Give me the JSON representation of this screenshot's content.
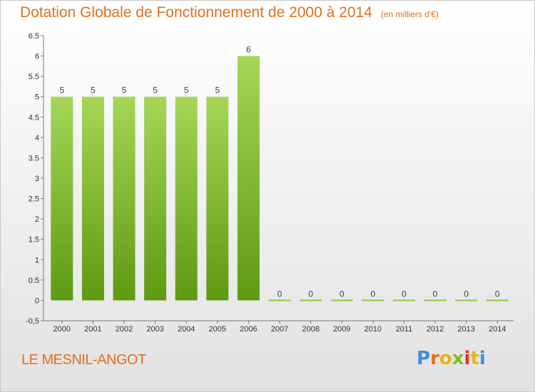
{
  "header": {
    "title": "Dotation Globale de Fonctionnement de 2000 à 2014",
    "unit": "(en milliers d'€)"
  },
  "commune": "LE MESNIL-ANGOT",
  "logo": {
    "text": "Proxiti"
  },
  "colors": {
    "title": "#e0701e",
    "bar_light": "#9fd24e",
    "bar_dark": "#5e9a12",
    "zero_bar": "#8cc63e"
  },
  "chart_data": {
    "type": "bar",
    "title": "Dotation Globale de Fonctionnement de 2000 à 2014",
    "subtitle": "(en milliers d'€)",
    "categories": [
      "2000",
      "2001",
      "2002",
      "2003",
      "2004",
      "2005",
      "2006",
      "2007",
      "2008",
      "2009",
      "2010",
      "2011",
      "2012",
      "2013",
      "2014"
    ],
    "values": [
      5,
      5,
      5,
      5,
      5,
      5,
      6,
      0,
      0,
      0,
      0,
      0,
      0,
      0,
      0
    ],
    "ylim": [
      -0.5,
      6.5
    ],
    "yticks": [
      "-0,5",
      "0",
      "0.5",
      "1",
      "1.5",
      "2",
      "2.5",
      "3",
      "3.5",
      "4",
      "4.5",
      "5",
      "5.5",
      "6",
      "6.5"
    ],
    "grid": false
  }
}
